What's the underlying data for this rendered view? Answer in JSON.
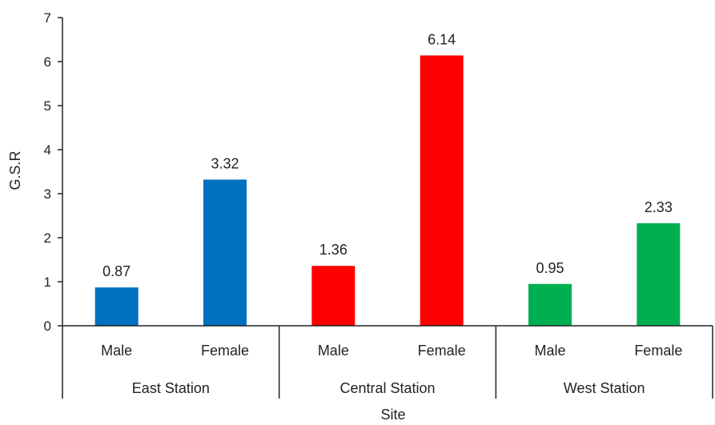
{
  "chart_data": {
    "type": "bar",
    "title": "",
    "xlabel": "Site",
    "ylabel": "G.S.R",
    "ylim": [
      0,
      7
    ],
    "yticks": [
      0,
      1,
      2,
      3,
      4,
      5,
      6,
      7
    ],
    "grid": false,
    "legend": "none",
    "groups": [
      {
        "name": "East Station",
        "color": "#0070C0",
        "bars": [
          {
            "category": "Male",
            "value": 0.87,
            "label": "0.87"
          },
          {
            "category": "Female",
            "value": 3.32,
            "label": "3.32"
          }
        ]
      },
      {
        "name": "Central Station",
        "color": "#FF0000",
        "bars": [
          {
            "category": "Male",
            "value": 1.36,
            "label": "1.36"
          },
          {
            "category": "Female",
            "value": 6.14,
            "label": "6.14"
          }
        ]
      },
      {
        "name": "West Station",
        "color": "#00B050",
        "bars": [
          {
            "category": "Male",
            "value": 0.95,
            "label": "0.95"
          },
          {
            "category": "Female",
            "value": 2.33,
            "label": "2.33"
          }
        ]
      }
    ]
  }
}
